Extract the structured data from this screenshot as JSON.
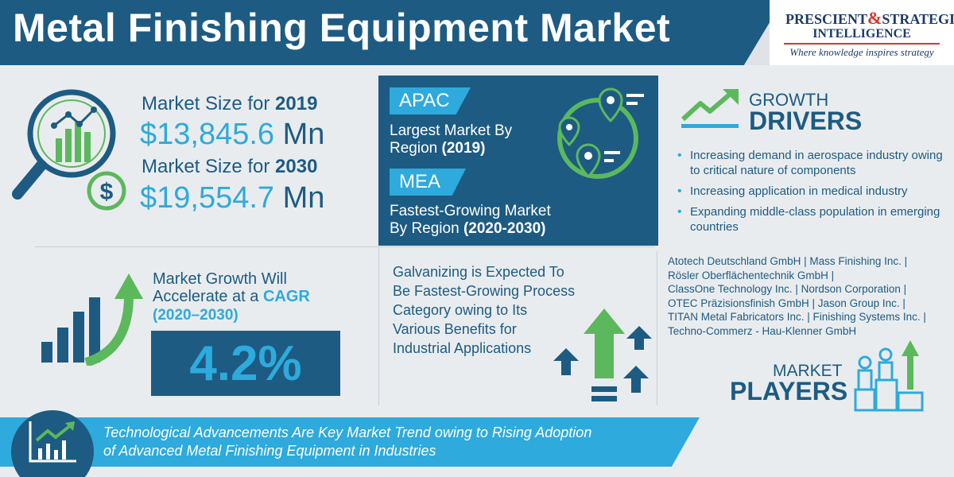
{
  "header": {
    "title": "Metal Finishing Equipment Market",
    "logo": {
      "line1_a": "PRESCIENT",
      "line1_amp": "&",
      "line1_b": "STRATEGIC",
      "line2": "INTELLIGENCE",
      "tagline": "Where knowledge inspires strategy"
    }
  },
  "market_size": {
    "label_prefix": "Market Size for ",
    "year1": "2019",
    "value1": "$13,845.6",
    "unit": "Mn",
    "year2": "2030",
    "value2": "$19,554.7"
  },
  "regions": {
    "tag1": "APAC",
    "text1_line1": "Largest Market By",
    "text1_line2": "Region ",
    "text1_year": "(2019)",
    "tag2": "MEA",
    "text2_line1": "Fastest-Growing Market",
    "text2_line2": "By Region ",
    "text2_year": "(2020-2030)"
  },
  "growth_drivers": {
    "title_top": "GROWTH",
    "title_bottom": "DRIVERS",
    "items": [
      "Increasing demand in aerospace industry owing to critical nature of components",
      "Increasing application in medical industry",
      "Expanding middle-class population in emerging countries"
    ]
  },
  "cagr": {
    "line1": "Market Growth Will",
    "line2_prefix": "Accelerate at a ",
    "line2_highlight": "CAGR",
    "period": "(2020–2030)",
    "value": "4.2%"
  },
  "galvanizing": {
    "lines": [
      "Galvanizing is Expected To",
      "Be Fastest-Growing Process",
      "Category owing to Its",
      "Various Benefits for",
      "Industrial Applications"
    ]
  },
  "players": {
    "lines": [
      "Atotech Deutschland GmbH | Mass Finishing Inc. |",
      "Rösler Oberflächentechnik GmbH |",
      "ClassOne Technology Inc. | Nordson Corporation |",
      "OTEC Präzisionsfinish GmbH | Jason Group Inc. |",
      "TITAN Metal Fabricators Inc. | Finishing Systems Inc. |",
      "Techno-Commerz - Hau-Klenner GmbH"
    ],
    "title_top": "MARKET",
    "title_bottom": "PLAYERS"
  },
  "footer": {
    "line1": "Technological Advancements Are Key Market Trend owing to Rising Adoption",
    "line2": "of  Advanced Metal Finishing Equipment in Industries"
  },
  "colors": {
    "navy": "#1d5b82",
    "cyan": "#2eaadc",
    "green": "#5cb85c",
    "background": "#e9ecef"
  },
  "icons": [
    "analytics-magnifier-icon",
    "dollar-coin-icon",
    "map-pin-icon",
    "trend-up-icon",
    "growth-bars-arrow-icon",
    "up-arrows-icon",
    "people-podium-icon",
    "line-chart-icon"
  ]
}
